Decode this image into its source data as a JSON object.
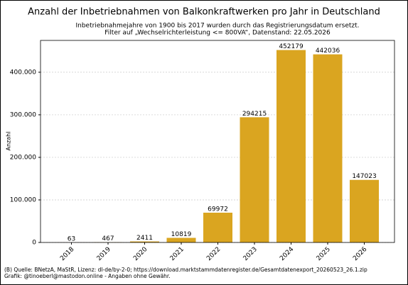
{
  "chart_data": {
    "type": "bar",
    "title": "Anzahl der Inbetriebnahmen von Balkonkraftwerken pro Jahr in Deutschland",
    "subtitle": [
      "Inbetriebnahmejahre von 1900 bis 2017 wurden durch das Registrierungsdatum ersetzt.",
      "Filter auf „Wechselrichterleistung <= 800VA“, Datenstand: 22.05.2026"
    ],
    "ylabel": "Anzahl",
    "categories": [
      "2018",
      "2019",
      "2020",
      "2021",
      "2022",
      "2023",
      "2024",
      "2025",
      "2026"
    ],
    "values": [
      63,
      467,
      2411,
      10819,
      69972,
      294215,
      452179,
      442036,
      147023
    ],
    "color": "#daa520",
    "ylim": [
      0,
      474788
    ],
    "yticks": [
      {
        "value": 0,
        "label": "0"
      },
      {
        "value": 100000,
        "label": "100.000"
      },
      {
        "value": 200000,
        "label": "200.000"
      },
      {
        "value": 300000,
        "label": "300.000"
      },
      {
        "value": 400000,
        "label": "400.000"
      }
    ],
    "grid": true,
    "footer": [
      "(B) Quelle: BNetzA, MaStR, Lizenz: dl-de/by-2-0; https://download.marktstammdatenregister.de/Gesamtdatenexport_20260523_26.1.zip",
      "Grafik: @tinoeberl@mastodon.online - Angaben ohne Gewähr."
    ]
  }
}
